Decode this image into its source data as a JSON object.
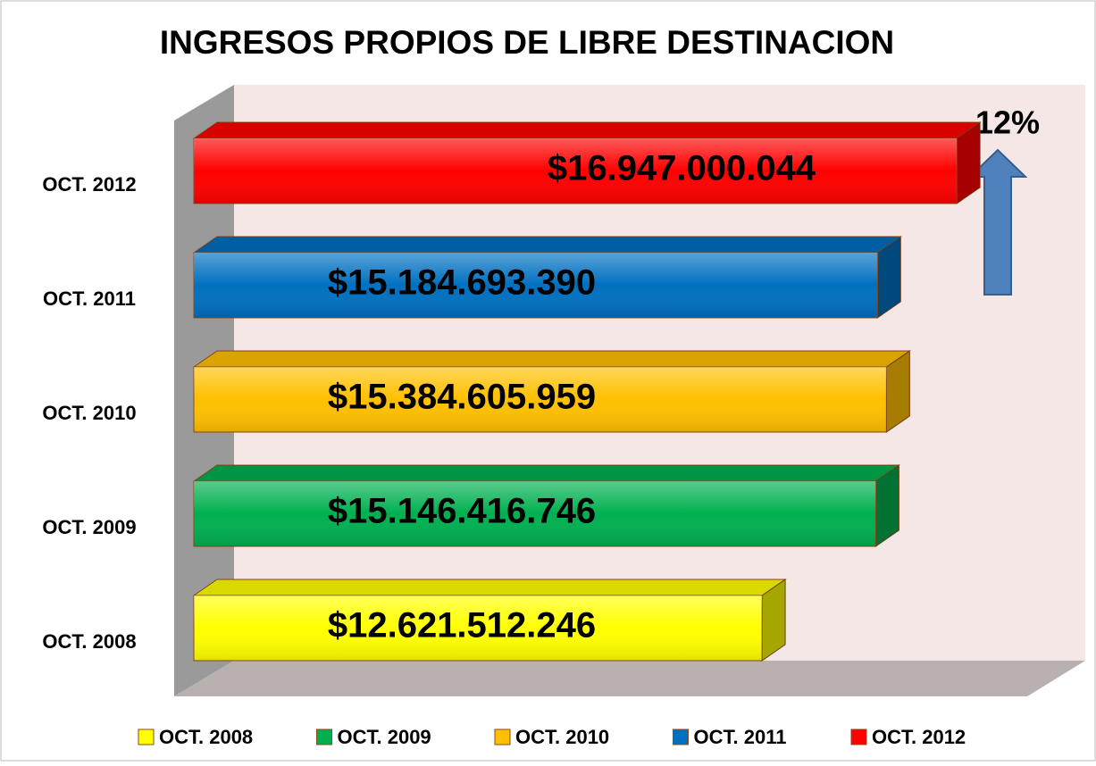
{
  "chart_data": {
    "type": "bar",
    "orientation": "horizontal",
    "title": "INGRESOS PROPIOS DE LIBRE DESTINACION",
    "categories": [
      "OCT. 2008",
      "OCT. 2009",
      "OCT. 2010",
      "OCT. 2011",
      "OCT. 2012"
    ],
    "values": [
      12621512246,
      15146416746,
      15384605959,
      15184693390,
      16947000044
    ],
    "value_labels": [
      "$12.621.512.246",
      "$15.146.416.746",
      "$15.384.605.959",
      "$15.184.693.390",
      "$16.947.000.044"
    ],
    "colors": [
      "#ffff00",
      "#00b050",
      "#ffc000",
      "#0070c0",
      "#ff0000"
    ],
    "xlim": [
      0,
      20000000000
    ],
    "legend": "bottom",
    "annotation": "12%"
  }
}
